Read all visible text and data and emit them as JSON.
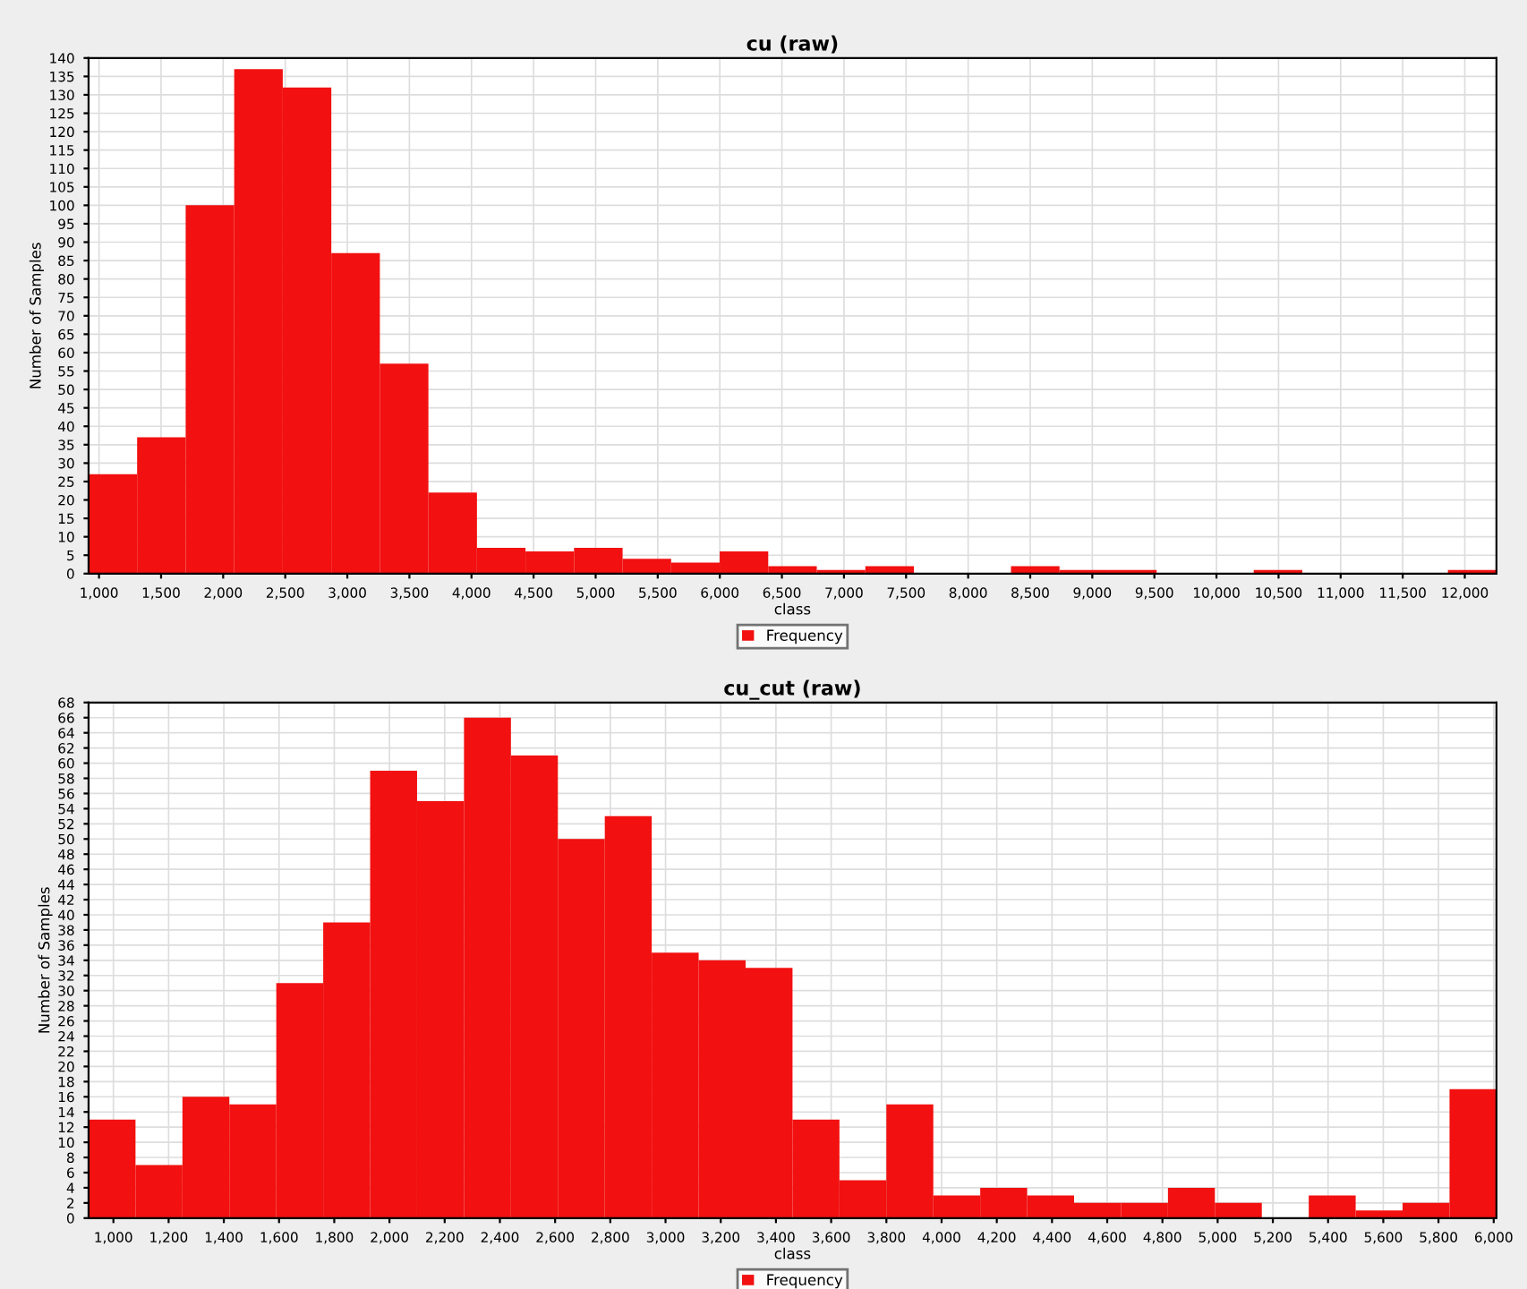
{
  "chart_data": [
    {
      "type": "histogram",
      "title": "cu (raw)",
      "xlabel": "class",
      "ylabel": "Number of Samples",
      "bins": [
        916,
        1307,
        1698,
        2089,
        2480,
        2871,
        3262,
        3653,
        4044,
        4435,
        4826,
        5217,
        5608,
        5999,
        6390,
        6781,
        7172,
        7563,
        7954,
        8345,
        8736,
        9127,
        9518,
        9909,
        10300,
        10691,
        11082,
        11473,
        11864,
        12255
      ],
      "series": [
        {
          "name": "Frequency",
          "color": "#f21010",
          "values": [
            27,
            37,
            100,
            137,
            132,
            87,
            57,
            22,
            7,
            6,
            7,
            4,
            3,
            6,
            2,
            1,
            2,
            0,
            0,
            2,
            1,
            1,
            0,
            0,
            1,
            0,
            0,
            0,
            1
          ]
        }
      ],
      "xlim": [
        916,
        12255
      ],
      "xticks": [
        {
          "value": 1000,
          "label": "1,000"
        },
        {
          "value": 1500,
          "label": "1,500"
        },
        {
          "value": 2000,
          "label": "2,000"
        },
        {
          "value": 2500,
          "label": "2,500"
        },
        {
          "value": 3000,
          "label": "3,000"
        },
        {
          "value": 3500,
          "label": "3,500"
        },
        {
          "value": 4000,
          "label": "4,000"
        },
        {
          "value": 4500,
          "label": "4,500"
        },
        {
          "value": 5000,
          "label": "5,000"
        },
        {
          "value": 5500,
          "label": "5,500"
        },
        {
          "value": 6000,
          "label": "6,000"
        },
        {
          "value": 6500,
          "label": "6,500"
        },
        {
          "value": 7000,
          "label": "7,000"
        },
        {
          "value": 7500,
          "label": "7,500"
        },
        {
          "value": 8000,
          "label": "8,000"
        },
        {
          "value": 8500,
          "label": "8,500"
        },
        {
          "value": 9000,
          "label": "9,000"
        },
        {
          "value": 9500,
          "label": "9,500"
        },
        {
          "value": 10000,
          "label": "10,000"
        },
        {
          "value": 10500,
          "label": "10,500"
        },
        {
          "value": 11000,
          "label": "11,000"
        },
        {
          "value": 11500,
          "label": "11,500"
        },
        {
          "value": 12000,
          "label": "12,000"
        }
      ],
      "ylim": [
        0,
        140
      ],
      "yticks": [
        0,
        5,
        10,
        15,
        20,
        25,
        30,
        35,
        40,
        45,
        50,
        55,
        60,
        65,
        70,
        75,
        80,
        85,
        90,
        95,
        100,
        105,
        110,
        115,
        120,
        125,
        130,
        135,
        140
      ],
      "grid": true,
      "legend": "bottom"
    },
    {
      "type": "histogram",
      "title": "cu_cut (raw)",
      "xlabel": "class",
      "ylabel": "Number of Samples",
      "bins": [
        910,
        1080,
        1250,
        1420,
        1590,
        1760,
        1930,
        2100,
        2270,
        2440,
        2610,
        2780,
        2950,
        3120,
        3290,
        3460,
        3630,
        3800,
        3970,
        4140,
        4310,
        4480,
        4650,
        4820,
        4990,
        5160,
        5330,
        5500,
        5670,
        5840,
        6010
      ],
      "series": [
        {
          "name": "Frequency",
          "color": "#f21010",
          "values": [
            13,
            7,
            16,
            15,
            31,
            39,
            59,
            55,
            66,
            61,
            50,
            53,
            35,
            34,
            33,
            13,
            5,
            15,
            3,
            4,
            3,
            2,
            2,
            4,
            2,
            0,
            3,
            1,
            2,
            17
          ]
        }
      ],
      "xlim": [
        910,
        6010
      ],
      "xticks": [
        {
          "value": 1000,
          "label": "1,000"
        },
        {
          "value": 1200,
          "label": "1,200"
        },
        {
          "value": 1400,
          "label": "1,400"
        },
        {
          "value": 1600,
          "label": "1,600"
        },
        {
          "value": 1800,
          "label": "1,800"
        },
        {
          "value": 2000,
          "label": "2,000"
        },
        {
          "value": 2200,
          "label": "2,200"
        },
        {
          "value": 2400,
          "label": "2,400"
        },
        {
          "value": 2600,
          "label": "2,600"
        },
        {
          "value": 2800,
          "label": "2,800"
        },
        {
          "value": 3000,
          "label": "3,000"
        },
        {
          "value": 3200,
          "label": "3,200"
        },
        {
          "value": 3400,
          "label": "3,400"
        },
        {
          "value": 3600,
          "label": "3,600"
        },
        {
          "value": 3800,
          "label": "3,800"
        },
        {
          "value": 4000,
          "label": "4,000"
        },
        {
          "value": 4200,
          "label": "4,200"
        },
        {
          "value": 4400,
          "label": "4,400"
        },
        {
          "value": 4600,
          "label": "4,600"
        },
        {
          "value": 4800,
          "label": "4,800"
        },
        {
          "value": 5000,
          "label": "5,000"
        },
        {
          "value": 5200,
          "label": "5,200"
        },
        {
          "value": 5400,
          "label": "5,400"
        },
        {
          "value": 5600,
          "label": "5,600"
        },
        {
          "value": 5800,
          "label": "5,800"
        },
        {
          "value": 6000,
          "label": "6,000"
        }
      ],
      "ylim": [
        0,
        68
      ],
      "yticks": [
        0,
        2,
        4,
        6,
        8,
        10,
        12,
        14,
        16,
        18,
        20,
        22,
        24,
        26,
        28,
        30,
        32,
        34,
        36,
        38,
        40,
        42,
        44,
        46,
        48,
        50,
        52,
        54,
        56,
        58,
        60,
        62,
        64,
        66,
        68
      ],
      "grid": true,
      "legend": "bottom"
    }
  ]
}
